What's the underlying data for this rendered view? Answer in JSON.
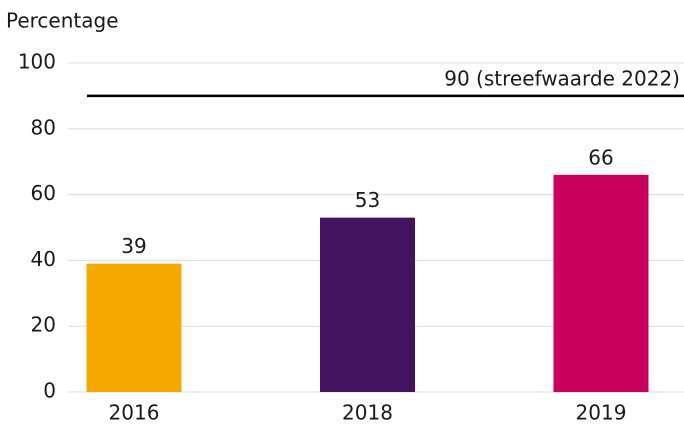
{
  "chart_data": {
    "type": "bar",
    "y_label": "Percentage",
    "categories": [
      "2016",
      "2018",
      "2019"
    ],
    "values": [
      39,
      53,
      66
    ],
    "colors": [
      "#f5a800",
      "#42145f",
      "#ca005d"
    ],
    "ylim": [
      0,
      100
    ],
    "yticks": [
      0,
      20,
      40,
      60,
      80,
      100
    ],
    "grid": true,
    "target_line": {
      "value": 90,
      "label": "90 (streefwaarde 2022)",
      "color": "#000000"
    }
  }
}
